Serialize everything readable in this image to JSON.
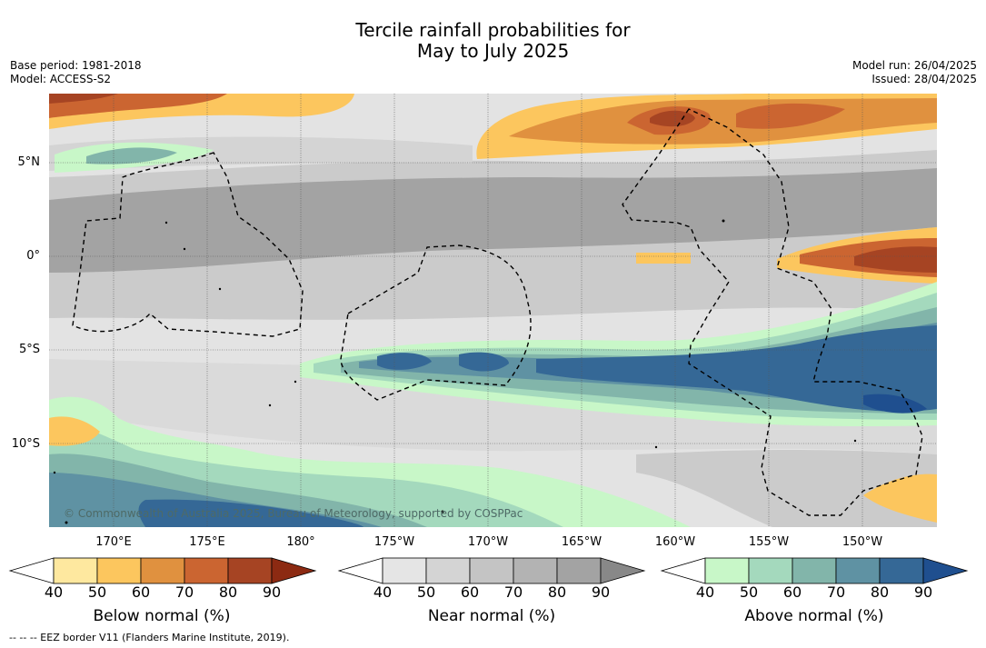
{
  "title": {
    "line1": "Tercile rainfall probabilities for",
    "line2": "May to July 2025"
  },
  "meta": {
    "base_period": "Base period: 1981-2018",
    "model": "Model: ACCESS-S2",
    "model_run": "Model run: 26/04/2025",
    "issued": "Issued: 28/04/2025"
  },
  "map": {
    "lat_labels": [
      "5°N",
      "0°",
      "5°S",
      "10°S"
    ],
    "lon_labels": [
      "170°E",
      "175°E",
      "180°",
      "175°W",
      "170°W",
      "165°W",
      "160°W",
      "155°W",
      "150°W"
    ],
    "copyright": "© Commonwealth of Australia 2025, Bureau of Meteorology, supported by COSPPac",
    "colors": {
      "land_white": "#ffffff",
      "grid": "#555555"
    }
  },
  "colorbars": [
    {
      "title": "Below normal (%)",
      "ticks": [
        "40",
        "50",
        "60",
        "70",
        "80",
        "90"
      ],
      "colors": [
        "#ffffff",
        "#fee89f",
        "#fcc65e",
        "#e0913f",
        "#cb6531",
        "#a64423",
        "#8c2a12"
      ]
    },
    {
      "title": "Near normal (%)",
      "ticks": [
        "40",
        "50",
        "60",
        "70",
        "80",
        "90"
      ],
      "colors": [
        "#ffffff",
        "#e5e5e5",
        "#d4d4d4",
        "#c4c4c4",
        "#b3b3b3",
        "#a3a3a3",
        "#888888"
      ]
    },
    {
      "title": "Above normal (%)",
      "ticks": [
        "40",
        "50",
        "60",
        "70",
        "80",
        "90"
      ],
      "colors": [
        "#ffffff",
        "#c8f7c8",
        "#a4d9bd",
        "#82b5aa",
        "#5f92a3",
        "#356896",
        "#1f4f8f"
      ]
    }
  ],
  "legend_note": "--  --  -- EEZ border V11 (Flanders Marine Institute, 2019)."
}
